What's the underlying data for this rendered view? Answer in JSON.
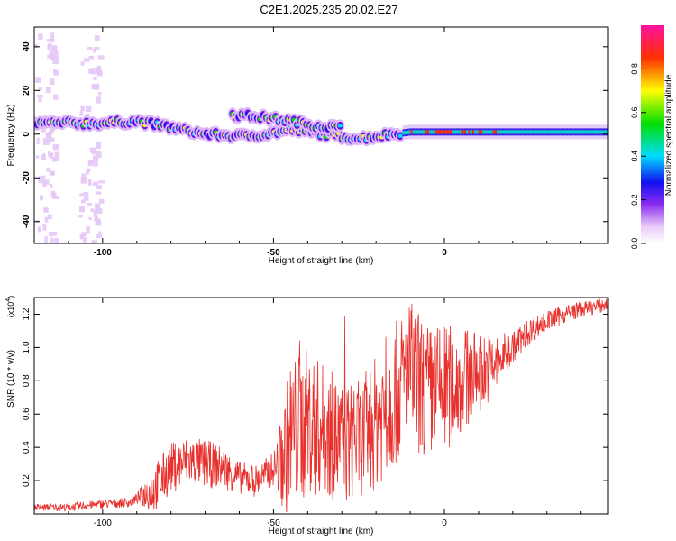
{
  "figure_title": "C2E1.2025.235.20.02.E27",
  "colors": {
    "snr_line": "#e8302c",
    "axis": "#000000"
  },
  "chart_data": [
    {
      "type": "heatmap",
      "title": "",
      "xlabel": "Height of straight line (km)",
      "ylabel": "Frequency (Hz)",
      "xlim": [
        -120,
        48
      ],
      "ylim": [
        -50,
        49
      ],
      "x_ticks": [
        -100,
        -50,
        0
      ],
      "y_ticks": [
        -40,
        -20,
        0,
        20,
        40
      ],
      "colorbar": {
        "label": "Normalized spectral amplitude",
        "range": [
          0,
          1
        ],
        "ticks": [
          0.0,
          0.2,
          0.4,
          0.6,
          0.8
        ]
      },
      "ridges": [
        {
          "name": "main",
          "points": [
            [
              -120,
              5
            ],
            [
              -110,
              5
            ],
            [
              -100,
              5
            ],
            [
              -90,
              6
            ],
            [
              -80,
              3
            ],
            [
              -70,
              0
            ],
            [
              -60,
              -1
            ],
            [
              -52,
              0
            ],
            [
              -45,
              2
            ],
            [
              -35,
              0
            ],
            [
              -25,
              -2
            ],
            [
              -15,
              0
            ],
            [
              -10,
              1
            ],
            [
              0,
              1
            ],
            [
              10,
              1
            ],
            [
              20,
              1
            ],
            [
              30,
              1
            ],
            [
              48,
              1
            ]
          ]
        },
        {
          "name": "branch",
          "points": [
            [
              -62,
              9
            ],
            [
              -55,
              8
            ],
            [
              -45,
              6
            ],
            [
              -38,
              4
            ],
            [
              -30,
              3
            ]
          ]
        }
      ],
      "vertical_bands": [
        [
          -120,
          -114
        ],
        [
          -107,
          -101
        ]
      ]
    },
    {
      "type": "line",
      "title": "",
      "xlabel": "Height of straight line (km)",
      "ylabel": "SNR (10 * v/v)",
      "y_multiplier": "(x10",
      "y_multiplier_exp": "4",
      "y_multiplier_close": ")",
      "xlim": [
        -120,
        48
      ],
      "ylim": [
        0,
        1.3
      ],
      "x_ticks": [
        -100,
        -50,
        0
      ],
      "y_ticks": [
        0.2,
        0.4,
        0.6,
        0.8,
        1.0,
        1.2
      ],
      "series": [
        {
          "name": "SNR",
          "envelope": [
            [
              -120,
              0.04
            ],
            [
              -110,
              0.04
            ],
            [
              -100,
              0.06
            ],
            [
              -92,
              0.07
            ],
            [
              -85,
              0.15
            ],
            [
              -80,
              0.28
            ],
            [
              -75,
              0.32
            ],
            [
              -70,
              0.3
            ],
            [
              -65,
              0.28
            ],
            [
              -60,
              0.22
            ],
            [
              -55,
              0.2
            ],
            [
              -52,
              0.24
            ],
            [
              -48,
              0.3
            ],
            [
              -45,
              0.45
            ],
            [
              -40,
              0.55
            ],
            [
              -35,
              0.5
            ],
            [
              -30,
              0.42
            ],
            [
              -25,
              0.45
            ],
            [
              -20,
              0.55
            ],
            [
              -15,
              0.7
            ],
            [
              -10,
              0.85
            ],
            [
              -5,
              0.72
            ],
            [
              0,
              0.75
            ],
            [
              5,
              0.8
            ],
            [
              10,
              0.85
            ],
            [
              15,
              0.9
            ],
            [
              20,
              1.0
            ],
            [
              25,
              1.1
            ],
            [
              30,
              1.16
            ],
            [
              38,
              1.22
            ],
            [
              48,
              1.26
            ]
          ],
          "noise_amplitude": [
            [
              -120,
              0.02
            ],
            [
              -90,
              0.03
            ],
            [
              -85,
              0.15
            ],
            [
              -70,
              0.15
            ],
            [
              -60,
              0.1
            ],
            [
              -50,
              0.1
            ],
            [
              -45,
              0.5
            ],
            [
              -35,
              0.4
            ],
            [
              -25,
              0.35
            ],
            [
              -20,
              0.4
            ],
            [
              -10,
              0.45
            ],
            [
              0,
              0.4
            ],
            [
              10,
              0.25
            ],
            [
              20,
              0.1
            ],
            [
              30,
              0.06
            ],
            [
              48,
              0.04
            ]
          ]
        }
      ]
    }
  ]
}
